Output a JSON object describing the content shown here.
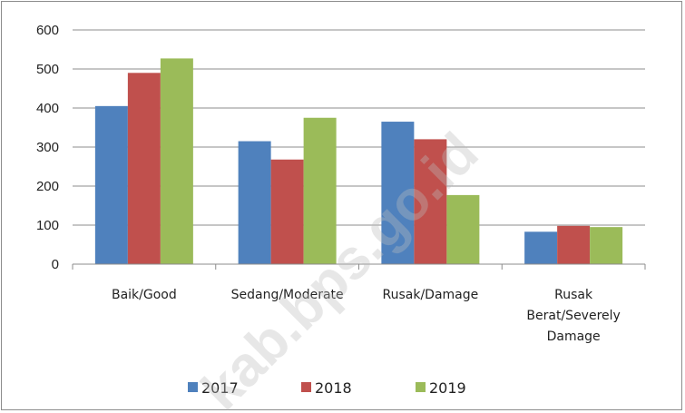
{
  "chart_data": {
    "type": "bar",
    "categories": [
      "Baik/Good",
      "Sedang/Moderate",
      "Rusak/Damage",
      "Rusak Berat/Severely Damage"
    ],
    "category_lines": [
      [
        "Baik/Good"
      ],
      [
        "Sedang/Moderate"
      ],
      [
        "Rusak/Damage"
      ],
      [
        "Rusak",
        "Berat/Severely",
        "Damage"
      ]
    ],
    "series": [
      {
        "name": "2017",
        "color": "#4f81bd",
        "values": [
          405,
          315,
          365,
          83
        ]
      },
      {
        "name": "2018",
        "color": "#c0504d",
        "values": [
          490,
          268,
          320,
          98
        ]
      },
      {
        "name": "2019",
        "color": "#9bbb59",
        "values": [
          527,
          375,
          177,
          95
        ]
      }
    ],
    "ylim": [
      0,
      600
    ],
    "yticks": [
      0,
      100,
      200,
      300,
      400,
      500,
      600
    ],
    "grid": true,
    "legend": "bottom",
    "watermark": "kab.bps.go.id"
  }
}
